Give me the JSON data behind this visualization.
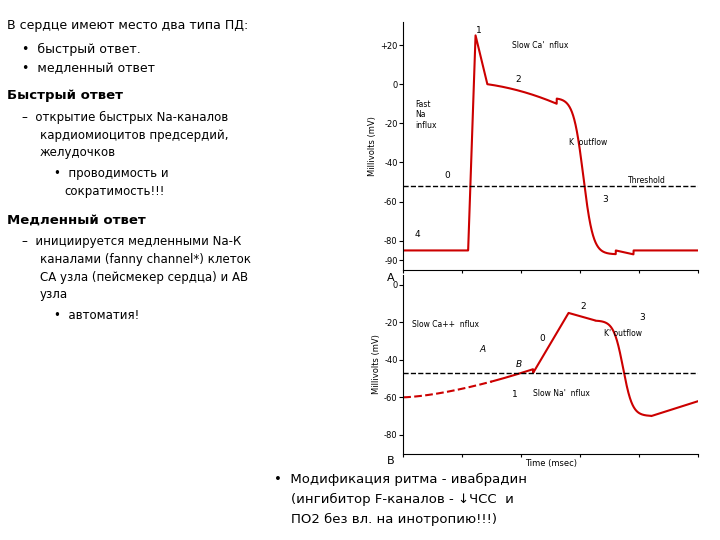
{
  "background_color": "#ffffff",
  "line_color": "#cc0000",
  "chart_A": {
    "ylim": [
      -95,
      32
    ],
    "threshold": -52,
    "yticks": [
      -90,
      -80,
      -60,
      -40,
      -20,
      0,
      20
    ],
    "ytick_labels": [
      "-90",
      "-80",
      "-60",
      "-40",
      "-20",
      "0",
      "+20"
    ]
  },
  "chart_B": {
    "ylim": [
      -90,
      5
    ],
    "threshold": -47,
    "yticks": [
      -80,
      -60,
      -40,
      -20,
      0
    ],
    "ytick_labels": [
      "-80",
      "-60",
      "-40",
      "-20",
      "0"
    ]
  }
}
